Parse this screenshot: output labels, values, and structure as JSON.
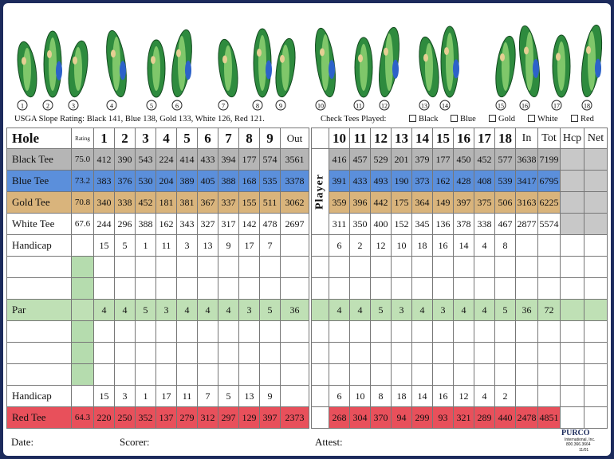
{
  "holes": [
    1,
    2,
    3,
    4,
    5,
    6,
    7,
    8,
    9,
    10,
    11,
    12,
    13,
    14,
    15,
    16,
    17,
    18
  ],
  "slope_rating": "USGA Slope Rating: Black 141, Blue 138, Gold 133, White 126, Red 121.",
  "check_tees": {
    "label": "Check Tees Played:",
    "options": [
      "Black",
      "Blue",
      "Gold",
      "White",
      "Red"
    ]
  },
  "front": {
    "header": {
      "label": "Hole",
      "rating": "Rating",
      "holes": [
        1,
        2,
        3,
        4,
        5,
        6,
        7,
        8,
        9
      ],
      "total": "Out"
    },
    "rows": {
      "black": {
        "label": "Black Tee",
        "color": "#b5b5b5",
        "rating": "75.0",
        "holes": [
          412,
          390,
          543,
          224,
          414,
          433,
          394,
          177,
          574
        ],
        "total": 3561
      },
      "blue": {
        "label": "Blue Tee",
        "color": "#5b8fdb",
        "rating": 73.2,
        "holes": [
          383,
          376,
          530,
          204,
          389,
          405,
          388,
          168,
          535
        ],
        "total": 3378
      },
      "gold": {
        "label": "Gold Tee",
        "color": "#d9b47c",
        "rating": 70.8,
        "holes": [
          340,
          338,
          452,
          181,
          381,
          367,
          337,
          155,
          511
        ],
        "total": 3062
      },
      "white": {
        "label": "White Tee",
        "color": "#ffffff",
        "rating": 67.6,
        "holes": [
          244,
          296,
          388,
          162,
          343,
          327,
          317,
          142,
          478
        ],
        "total": 2697
      },
      "handicap": {
        "label": "Handicap",
        "holes": [
          15,
          5,
          1,
          11,
          3,
          13,
          9,
          17,
          7
        ]
      },
      "par": {
        "label": "Par",
        "color": "#bfe0b5",
        "holes": [
          4,
          4,
          5,
          3,
          4,
          4,
          4,
          3,
          5
        ],
        "total": 36
      },
      "handicap2": {
        "label": "Handicap",
        "holes": [
          15,
          3,
          1,
          17,
          11,
          7,
          5,
          13,
          9
        ]
      },
      "red": {
        "label": "Red Tee",
        "color": "#e8505b",
        "rating": 64.3,
        "holes": [
          220,
          250,
          352,
          137,
          279,
          312,
          297,
          129,
          397
        ],
        "total": 2373
      }
    }
  },
  "back": {
    "header": {
      "holes": [
        10,
        11,
        12,
        13,
        14,
        15,
        16,
        17,
        18
      ],
      "in": "In",
      "tot": "Tot",
      "hcp": "Hcp",
      "net": "Net"
    },
    "player": "Player",
    "rows": {
      "black": {
        "color": "#b5b5b5",
        "holes": [
          416,
          457,
          529,
          201,
          379,
          177,
          450,
          452,
          577
        ],
        "in": 3638,
        "tot": 7199
      },
      "blue": {
        "color": "#5b8fdb",
        "holes": [
          391,
          433,
          493,
          190,
          373,
          162,
          428,
          408,
          539
        ],
        "in": 3417,
        "tot": 6795
      },
      "gold": {
        "color": "#d9b47c",
        "holes": [
          359,
          396,
          442,
          175,
          364,
          149,
          397,
          375,
          506
        ],
        "in": 3163,
        "tot": 6225
      },
      "white": {
        "color": "#ffffff",
        "holes": [
          311,
          350,
          400,
          152,
          345,
          136,
          378,
          338,
          467
        ],
        "in": 2877,
        "tot": 5574
      },
      "handicap": {
        "holes": [
          6,
          2,
          12,
          10,
          18,
          16,
          14,
          4,
          8
        ]
      },
      "par": {
        "color": "#bfe0b5",
        "holes": [
          4,
          4,
          5,
          3,
          4,
          3,
          4,
          4,
          5
        ],
        "in": 36,
        "tot": 72
      },
      "handicap2": {
        "holes": [
          6,
          10,
          8,
          18,
          14,
          16,
          12,
          4,
          2
        ]
      },
      "red": {
        "color": "#e8505b",
        "holes": [
          268,
          304,
          370,
          94,
          299,
          93,
          321,
          289,
          440
        ],
        "in": 2478,
        "tot": 4851
      }
    }
  },
  "footer": {
    "date": "Date:",
    "scorer": "Scorer:",
    "attest": "Attest:",
    "logo": "PURCO",
    "company": "International, Inc.",
    "phone": "800.366.3664",
    "code": "11/01"
  }
}
